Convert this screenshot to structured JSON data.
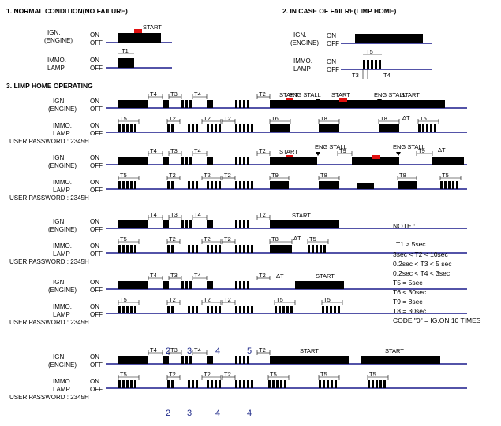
{
  "sections": {
    "normal": "1. NORMAL CONDITION(NO FAILURE)",
    "limp_case": "2. IN CASE OF FAILRE(LIMP HOME)",
    "limp_operating": "3. LIMP HOME OPERATING"
  },
  "labels": {
    "ign": "IGN.",
    "engine": "(ENGINE)",
    "immo": "IMMO.",
    "lamp": "LAMP",
    "on": "ON",
    "off": "OFF",
    "start": "START",
    "eng_stall": "ENG STALL",
    "user_password": "USER PASSWORD : 2345H",
    "delta_t": "ΔT"
  },
  "timers": {
    "t1": "T1",
    "t2": "T2",
    "t3": "T3",
    "t4": "T4",
    "t5": "T5",
    "t6": "T6",
    "t8": "T8",
    "t9": "T9"
  },
  "digit_sequence": {
    "top": [
      "2",
      "3",
      "4",
      "5"
    ],
    "bottom": [
      "2",
      "3",
      "4",
      "4"
    ]
  },
  "note": {
    "title": "NOTE :",
    "lines": [
      "T1 > 5sec",
      "3sec < T2 < 10sec",
      "0.2sec < T3 < 5 sec",
      "0.2sec < T4 < 3sec",
      "T5 = 5sec",
      "T6 < 30sec",
      "T9 = 8sec",
      "T8 = 30sec",
      "CODE \"0\" = IG.ON 10 TIMES"
    ]
  },
  "colors": {
    "baseline": "#1a1a8c",
    "signal": "#000000",
    "start_marker": "#e01010",
    "sequence_digits": "#1f2a8a"
  }
}
